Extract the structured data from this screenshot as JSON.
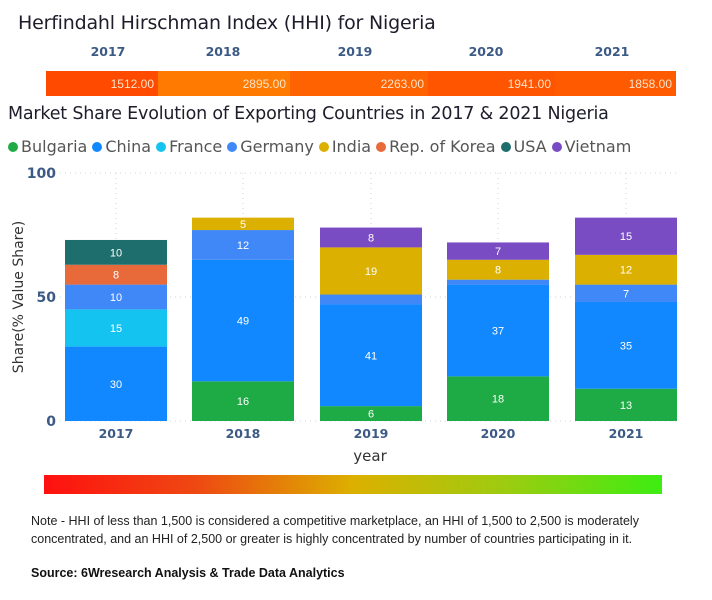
{
  "hhi": {
    "title": "Herfindahl Hirschman Index (HHI) for Nigeria",
    "years": [
      "2017",
      "2018",
      "2019",
      "2020",
      "2021"
    ],
    "values": [
      "1512.00",
      "2895.00",
      "2263.00",
      "1941.00",
      "1858.00"
    ],
    "cell_colors": [
      "#ff4a00",
      "#ff7a00",
      "#ff6200",
      "#ff5500",
      "#ff5a00"
    ]
  },
  "market_share": {
    "title": "Market Share Evolution of Exporting Countries in 2017 & 2021 Nigeria"
  },
  "gradient_legend": {
    "colors": [
      "#ff1010",
      "#dcb000",
      "#3ded12"
    ]
  },
  "note": "Note - HHI of less than 1,500 is considered a competitive marketplace, an HHI of 1,500 to 2,500 is moderately concentrated, and an HHI of 2,500 or greater is highly concentrated by number of countries participating in it.",
  "source": "Source: 6Wresearch Analysis & Trade Data Analytics",
  "chart_data": {
    "type": "bar",
    "stacked": true,
    "title": "Market Share Evolution of Exporting Countries in 2017 & 2021 Nigeria",
    "xlabel": "year",
    "ylabel": "Share(% Value Share)",
    "ylim": [
      0,
      100
    ],
    "yticks": [
      "0",
      "50",
      "100"
    ],
    "grid": true,
    "legend_position": "top-left",
    "categories": [
      "2017",
      "2018",
      "2019",
      "2020",
      "2021"
    ],
    "series": [
      {
        "name": "Bulgaria",
        "color": "#1eaa44",
        "values": [
          0,
          16,
          6,
          18,
          13
        ],
        "labels": [
          "",
          "16",
          "6",
          "18",
          "13"
        ]
      },
      {
        "name": "China",
        "color": "#1188ff",
        "values": [
          30,
          49,
          41,
          37,
          35
        ],
        "labels": [
          "30",
          "49",
          "41",
          "37",
          "35"
        ]
      },
      {
        "name": "France",
        "color": "#14c3f0",
        "values": [
          15,
          0,
          0,
          0,
          0
        ],
        "labels": [
          "15",
          "",
          "",
          "",
          ""
        ]
      },
      {
        "name": "Germany",
        "color": "#4088f8",
        "values": [
          10,
          12,
          4,
          2,
          7
        ],
        "labels": [
          "10",
          "12",
          "",
          "",
          "7"
        ]
      },
      {
        "name": "India",
        "color": "#dcb000",
        "values": [
          0,
          5,
          19,
          8,
          12
        ],
        "labels": [
          "",
          "5",
          "19",
          "8",
          "12"
        ]
      },
      {
        "name": "Rep. of Korea",
        "color": "#e8693a",
        "values": [
          8,
          0,
          0,
          0,
          0
        ],
        "labels": [
          "8",
          "",
          "",
          "",
          ""
        ]
      },
      {
        "name": "USA",
        "color": "#1f6e6e",
        "values": [
          10,
          0,
          0,
          0,
          0
        ],
        "labels": [
          "10",
          "",
          "",
          "",
          ""
        ]
      },
      {
        "name": "Vietnam",
        "color": "#7a4cc4",
        "values": [
          0,
          0,
          8,
          7,
          15
        ],
        "labels": [
          "",
          "",
          "8",
          "7",
          "15"
        ]
      }
    ]
  }
}
